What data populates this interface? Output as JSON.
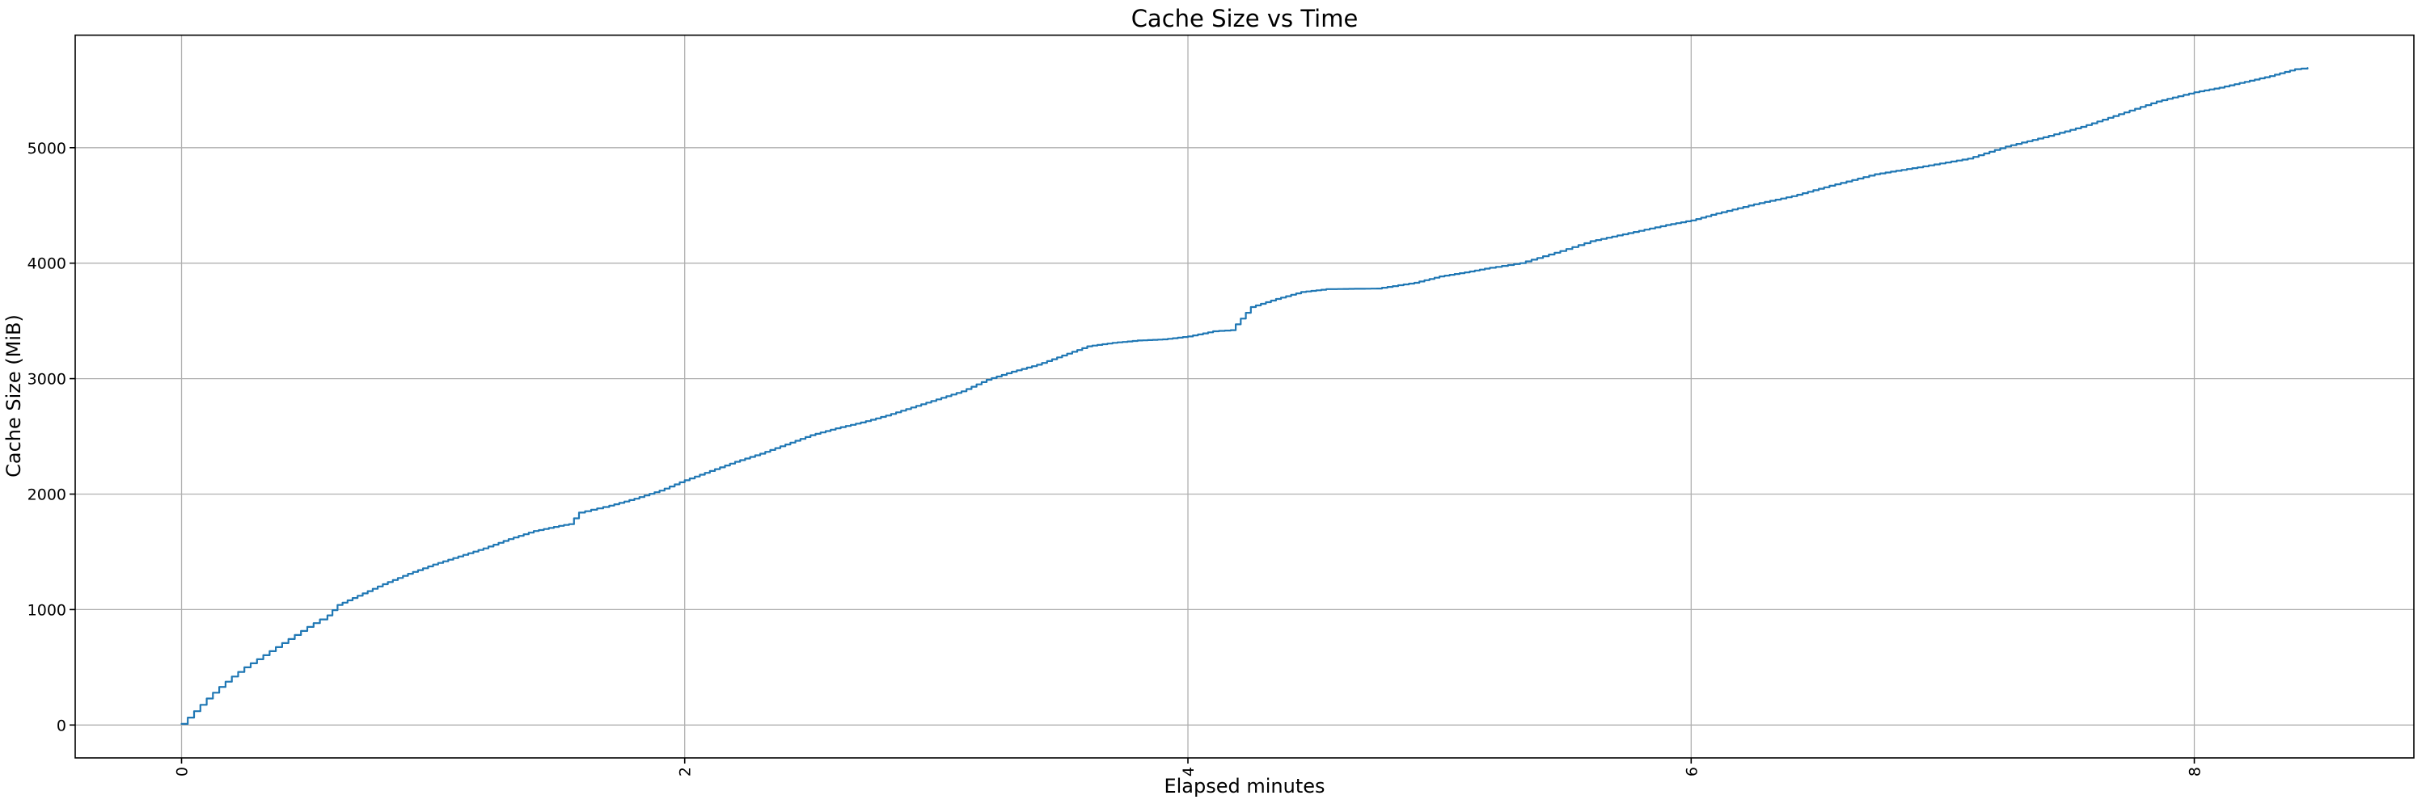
{
  "chart_data": {
    "type": "line",
    "title": "Cache Size vs Time",
    "xlabel": "Elapsed minutes",
    "ylabel": "Cache Size (MiB)",
    "xlim": [
      -0.4225,
      8.8725
    ],
    "ylim": [
      -284.5,
      5974.5
    ],
    "xticks": [
      0,
      2,
      4,
      6,
      8
    ],
    "xtick_labels": [
      "0",
      "2",
      "4",
      "6",
      "8"
    ],
    "xtick_rotation": 90,
    "yticks": [
      0,
      1000,
      2000,
      3000,
      4000,
      5000
    ],
    "ytick_labels": [
      "0",
      "1000",
      "2000",
      "3000",
      "4000",
      "5000"
    ],
    "grid": true,
    "legend": "none",
    "line_style": "staircase",
    "colors": {
      "line": "#1f77b4",
      "grid": "#b0b0b0",
      "spine": "#000000",
      "text": "#000000",
      "background": "#ffffff"
    },
    "series": [
      {
        "name": "cache-size",
        "x": [
          0,
          0.05,
          0.1,
          0.15,
          0.2,
          0.25,
          0.3,
          0.35,
          0.4,
          0.45,
          0.5,
          0.55,
          0.58,
          0.62,
          0.7,
          0.8,
          0.9,
          1.0,
          1.1,
          1.2,
          1.3,
          1.4,
          1.5,
          1.54,
          1.58,
          1.7,
          1.8,
          1.9,
          2.0,
          2.1,
          2.2,
          2.3,
          2.4,
          2.5,
          2.6,
          2.7,
          2.8,
          2.9,
          3.0,
          3.1,
          3.2,
          3.3,
          3.4,
          3.5,
          3.6,
          3.7,
          3.8,
          3.9,
          4.0,
          4.1,
          4.17,
          4.25,
          4.35,
          4.45,
          4.55,
          4.75,
          4.9,
          5.0,
          5.1,
          5.2,
          5.32,
          5.48,
          5.6,
          5.75,
          5.9,
          6.0,
          6.1,
          6.25,
          6.4,
          6.55,
          6.73,
          6.9,
          7.1,
          7.25,
          7.4,
          7.55,
          7.7,
          7.85,
          8.0,
          8.1,
          8.2,
          8.3,
          8.4,
          8.45
        ],
        "y": [
          10,
          120,
          230,
          330,
          420,
          500,
          570,
          640,
          710,
          780,
          850,
          915,
          950,
          1040,
          1120,
          1220,
          1310,
          1390,
          1460,
          1530,
          1610,
          1680,
          1725,
          1740,
          1840,
          1900,
          1960,
          2030,
          2120,
          2200,
          2280,
          2350,
          2430,
          2510,
          2570,
          2620,
          2680,
          2750,
          2820,
          2890,
          2990,
          3060,
          3120,
          3200,
          3280,
          3310,
          3330,
          3340,
          3365,
          3410,
          3420,
          3620,
          3690,
          3750,
          3775,
          3780,
          3830,
          3885,
          3920,
          3960,
          4000,
          4105,
          4190,
          4260,
          4330,
          4370,
          4430,
          4510,
          4580,
          4670,
          4770,
          4830,
          4905,
          5010,
          5090,
          5180,
          5290,
          5400,
          5480,
          5520,
          5570,
          5620,
          5680,
          5690
        ]
      }
    ]
  }
}
